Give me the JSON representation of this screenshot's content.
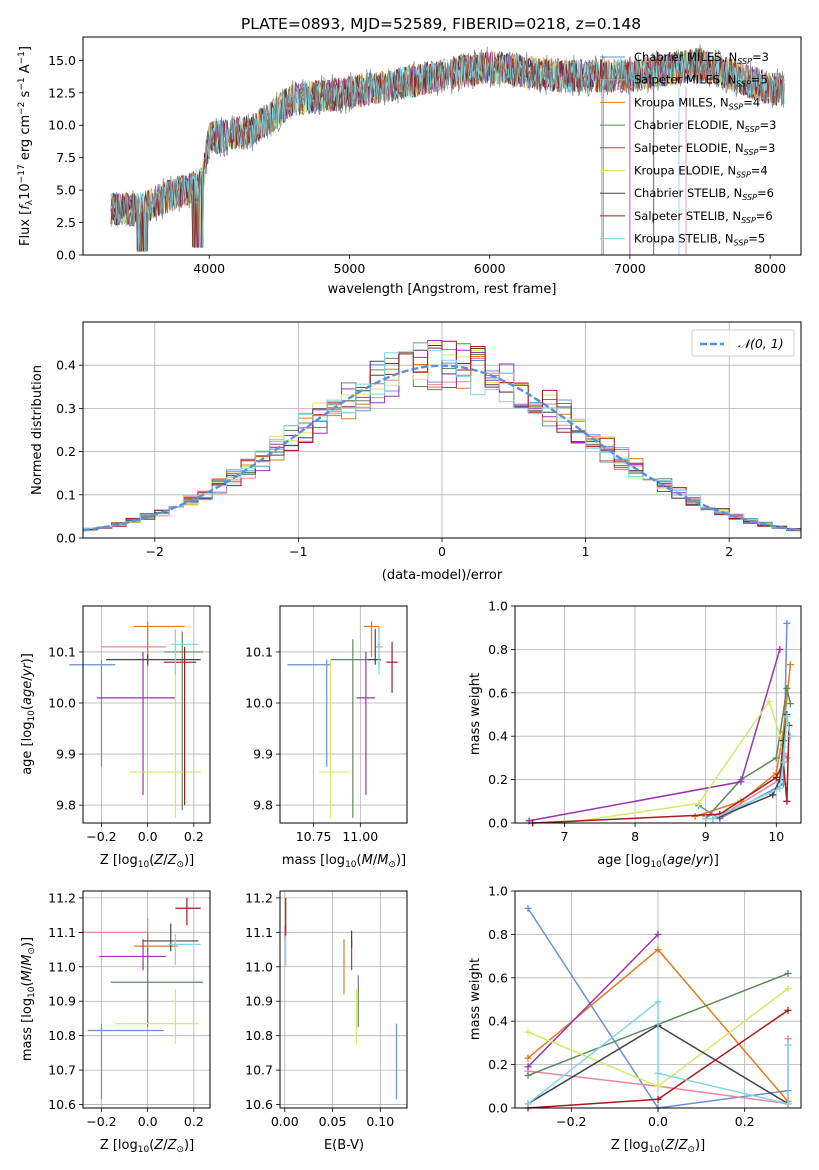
{
  "chart_data": [
    {
      "type": "line",
      "title": "PLATE=0893, MJD=52589, FIBERID=0218, z=0.148",
      "xlabel": "wavelength [Angstrom, rest frame]",
      "ylabel": "Flux [f_λ 10^{-17} erg cm^{-2} s^{-1} A^{-1}]",
      "ylabel_parts": {
        "a": "Flux [",
        "b": "f",
        "c": "λ",
        "d": "10",
        "e": "−17",
        "f": " erg cm",
        "g": "−2",
        "h": " s",
        "i": "−1",
        "j": " A",
        "k": "−1",
        "l": "]"
      },
      "xlim": [
        3100,
        8220
      ],
      "ylim": [
        0,
        16.8
      ],
      "xticks": [
        4000,
        5000,
        6000,
        7000,
        8000
      ],
      "xtick_labels": [
        "4000",
        "5000",
        "6000",
        "7000",
        "8000"
      ],
      "yticks": [
        0,
        2.5,
        5,
        7.5,
        10,
        12.5,
        15
      ],
      "ytick_labels": [
        "0.0",
        "2.5",
        "5.0",
        "7.5",
        "10.0",
        "12.5",
        "15.0"
      ],
      "data_range": [
        3300,
        8100
      ],
      "continuum": [
        {
          "x": 3300,
          "y": 3.5
        },
        {
          "x": 3500,
          "y": 3.5
        },
        {
          "x": 3700,
          "y": 4.5
        },
        {
          "x": 3950,
          "y": 5.5
        },
        {
          "x": 4000,
          "y": 9.0
        },
        {
          "x": 4300,
          "y": 9.5
        },
        {
          "x": 4600,
          "y": 12.0
        },
        {
          "x": 5000,
          "y": 12.5
        },
        {
          "x": 5500,
          "y": 13.5
        },
        {
          "x": 6000,
          "y": 14.5
        },
        {
          "x": 6500,
          "y": 13.8
        },
        {
          "x": 7000,
          "y": 13.8
        },
        {
          "x": 7500,
          "y": 14.7
        },
        {
          "x": 8000,
          "y": 12.8
        },
        {
          "x": 8100,
          "y": 12.8
        }
      ],
      "series": [
        {
          "name": "Chabrier MILES",
          "nssp": "3",
          "color": "#6a8fdc"
        },
        {
          "name": "Salpeter MILES",
          "nssp": "5",
          "color": "#e6889b"
        },
        {
          "name": "Kroupa MILES",
          "nssp": "4",
          "color": "#e07b1f"
        },
        {
          "name": "Chabrier ELODIE",
          "nssp": "3",
          "color": "#5e8a62"
        },
        {
          "name": "Salpeter ELODIE",
          "nssp": "3",
          "color": "#9b34b3"
        },
        {
          "name": "Kroupa ELODIE",
          "nssp": "4",
          "color": "#d7e86a"
        },
        {
          "name": "Chabrier STELIB",
          "nssp": "6",
          "color": "#444444"
        },
        {
          "name": "Salpeter STELIB",
          "nssp": "6",
          "color": "#a51c1c"
        },
        {
          "name": "Kroupa STELIB",
          "nssp": "5",
          "color": "#7fd7e3"
        }
      ],
      "data_color": "#808080",
      "legend": "top-right",
      "legend_ssp_label": "N_SSP="
    },
    {
      "type": "area",
      "xlabel": "(data-model)/error",
      "ylabel": "Normed distribution",
      "xlim": [
        -2.5,
        2.5
      ],
      "ylim": [
        0,
        0.5
      ],
      "xticks": [
        -2,
        -1,
        0,
        1,
        2
      ],
      "xtick_labels": [
        "−2",
        "−1",
        "0",
        "1",
        "2"
      ],
      "yticks": [
        0,
        0.1,
        0.2,
        0.3,
        0.4
      ],
      "ytick_labels": [
        "0.0",
        "0.1",
        "0.2",
        "0.3",
        "0.4"
      ],
      "bin_width": 0.1,
      "grid": true,
      "legend": "top-right",
      "gaussian": {
        "label": "𝒩(0, 1)",
        "mean": 0,
        "sigma": 1,
        "color": "#5b8fdc"
      },
      "series_colors": [
        "#6a8fdc",
        "#e6889b",
        "#e07b1f",
        "#5e8a62",
        "#9b34b3",
        "#d7e86a",
        "#444444",
        "#a51c1c",
        "#7fd7e3"
      ]
    },
    {
      "type": "scatter",
      "xlabel": "Z [log10(Z/Z⊙)]",
      "ylabel": "age  [log10(age/yr)]",
      "xlim": [
        -0.28,
        0.27
      ],
      "ylim": [
        9.765,
        10.19
      ],
      "xticks": [
        -0.2,
        0.0,
        0.2
      ],
      "xtick_labels": [
        "−0.2",
        "0.0",
        "0.2"
      ],
      "yticks": [
        9.8,
        9.9,
        10.0,
        10.1
      ],
      "ytick_labels": [
        "9.8",
        "9.9",
        "10.0",
        "10.1"
      ],
      "grid": true,
      "points": [
        {
          "x": -0.2,
          "xerr": [
            0.14,
            0.06
          ],
          "y": 10.075,
          "yerr": [
            0.2,
            0.01
          ],
          "color": "#6a8fdc"
        },
        {
          "x": 0.0,
          "xerr": [
            0.2,
            0.08
          ],
          "y": 10.11,
          "yerr": [
            0.04,
            0.04
          ],
          "color": "#e6889b"
        },
        {
          "x": 0.0,
          "xerr": [
            0.06,
            0.16
          ],
          "y": 10.15,
          "yerr": [
            0.06,
            0.01
          ],
          "color": "#e07b1f"
        },
        {
          "x": 0.15,
          "xerr": [
            0.08,
            0.09
          ],
          "y": 10.1,
          "yerr": [
            0.31,
            0.04
          ],
          "color": "#5e8a62"
        },
        {
          "x": -0.02,
          "xerr": [
            0.2,
            0.14
          ],
          "y": 10.01,
          "yerr": [
            0.19,
            0.09
          ],
          "color": "#9b34b3"
        },
        {
          "x": 0.12,
          "xerr": [
            0.2,
            0.11
          ],
          "y": 9.865,
          "yerr": [
            0.09,
            0.22
          ],
          "color": "#d7e86a"
        },
        {
          "x": 0.0,
          "xerr": [
            0.18,
            0.23
          ],
          "y": 10.085,
          "yerr": [
            0.01,
            0.01
          ],
          "color": "#444444"
        },
        {
          "x": 0.16,
          "xerr": [
            0.09,
            0.05
          ],
          "y": 10.08,
          "yerr": [
            0.28,
            0.03
          ],
          "color": "#a51c1c"
        },
        {
          "x": 0.12,
          "xerr": [
            0.02,
            0.1
          ],
          "y": 10.115,
          "yerr": [
            0.06,
            0.03
          ],
          "color": "#7fd7e3"
        }
      ]
    },
    {
      "type": "scatter",
      "xlabel": "mass [log10(M/M⊙)]",
      "xlim": [
        10.57,
        11.25
      ],
      "ylim": [
        9.765,
        10.19
      ],
      "xticks": [
        10.75,
        11.0
      ],
      "xtick_labels": [
        "10.75",
        "11.00"
      ],
      "yticks": [
        9.8,
        9.9,
        10.0,
        10.1
      ],
      "ytick_labels": [
        "9.8",
        "9.9",
        "10.0",
        "10.1"
      ],
      "grid": true,
      "points": [
        {
          "x": 10.82,
          "xerr": [
            0.21,
            0.02
          ],
          "y": 10.075,
          "yerr": [
            0.2,
            0.01
          ],
          "color": "#6a8fdc"
        },
        {
          "x": 11.1,
          "xerr": [
            0.02,
            0.02
          ],
          "y": 10.11,
          "yerr": [
            0.04,
            0.04
          ],
          "color": "#e6889b"
        },
        {
          "x": 11.06,
          "xerr": [
            0.04,
            0.04
          ],
          "y": 10.15,
          "yerr": [
            0.06,
            0.01
          ],
          "color": "#e07b1f"
        },
        {
          "x": 10.96,
          "xerr": [
            0.12,
            0.1
          ],
          "y": 10.085,
          "yerr": [
            0.31,
            0.04
          ],
          "color": "#5e8a62"
        },
        {
          "x": 11.03,
          "xerr": [
            0.05,
            0.05
          ],
          "y": 10.01,
          "yerr": [
            0.19,
            0.09
          ],
          "color": "#9b34b3"
        },
        {
          "x": 10.84,
          "xerr": [
            0.06,
            0.1
          ],
          "y": 9.865,
          "yerr": [
            0.09,
            0.22
          ],
          "color": "#d7e86a"
        },
        {
          "x": 11.08,
          "xerr": [
            0.04,
            0.03
          ],
          "y": 10.085,
          "yerr": [
            0.01,
            0.06
          ],
          "color": "#444444"
        },
        {
          "x": 11.17,
          "xerr": [
            0.03,
            0.03
          ],
          "y": 10.08,
          "yerr": [
            0.06,
            0.04
          ],
          "color": "#a51c1c"
        },
        {
          "x": 11.1,
          "xerr": [
            0.01,
            0.01
          ],
          "y": 10.115,
          "yerr": [
            0.06,
            0.03
          ],
          "color": "#7fd7e3"
        }
      ]
    },
    {
      "type": "line",
      "xlabel": "age  [log10(age/yr)]",
      "ylabel": "mass weight",
      "xlim": [
        6.3,
        10.35
      ],
      "ylim": [
        0,
        1.0
      ],
      "xticks": [
        7,
        8,
        9,
        10
      ],
      "xtick_labels": [
        "7",
        "8",
        "9",
        "10"
      ],
      "yticks": [
        0,
        0.2,
        0.4,
        0.6,
        0.8,
        1.0
      ],
      "ytick_labels": [
        "0.0",
        "0.2",
        "0.4",
        "0.6",
        "0.8",
        "1.0"
      ],
      "grid": true,
      "series": [
        {
          "color": "#6a8fdc",
          "x": [
            8.9,
            9.2,
            10.1,
            10.15
          ],
          "y": [
            0.08,
            0.02,
            0.18,
            0.92
          ]
        },
        {
          "color": "#e6889b",
          "x": [
            9.0,
            9.3,
            10.05,
            10.1,
            10.15
          ],
          "y": [
            0.03,
            0.05,
            0.2,
            0.32,
            0.3
          ]
        },
        {
          "color": "#e07b1f",
          "x": [
            8.85,
            9.5,
            10.0,
            10.1,
            10.2
          ],
          "y": [
            0.03,
            0.1,
            0.23,
            0.42,
            0.73
          ]
        },
        {
          "color": "#5e8a62",
          "x": [
            9.0,
            9.5,
            10.0,
            10.15,
            10.2
          ],
          "y": [
            0.02,
            0.2,
            0.3,
            0.62,
            0.55
          ]
        },
        {
          "color": "#9b34b3",
          "x": [
            6.5,
            9.5,
            10.05
          ],
          "y": [
            0.01,
            0.19,
            0.8
          ]
        },
        {
          "color": "#d7e86a",
          "x": [
            7.0,
            8.9,
            9.9,
            10.1
          ],
          "y": [
            0.0,
            0.09,
            0.56,
            0.35
          ]
        },
        {
          "color": "#444444",
          "x": [
            9.1,
            9.2,
            9.95,
            10.05,
            10.1,
            10.15
          ],
          "y": [
            0.02,
            0.03,
            0.13,
            0.2,
            0.38,
            0.5
          ]
        },
        {
          "color": "#a51c1c",
          "x": [
            6.55,
            9.2,
            10.0,
            10.1,
            10.15,
            10.18
          ],
          "y": [
            0.0,
            0.04,
            0.21,
            0.28,
            0.1,
            0.45
          ]
        },
        {
          "color": "#7fd7e3",
          "x": [
            9.0,
            9.1,
            10.05,
            10.1,
            10.15,
            10.2
          ],
          "y": [
            0.02,
            0.02,
            0.16,
            0.28,
            0.49,
            0.4
          ]
        }
      ]
    },
    {
      "type": "scatter",
      "xlabel": "Z [log10(Z/Z⊙)]",
      "ylabel": "mass [log10(M/M⊙)]",
      "xlim": [
        -0.28,
        0.27
      ],
      "ylim": [
        10.59,
        11.22
      ],
      "xticks": [
        -0.2,
        0.0,
        0.2
      ],
      "xtick_labels": [
        "−0.2",
        "0.0",
        "0.2"
      ],
      "yticks": [
        10.6,
        10.7,
        10.8,
        10.9,
        11.0,
        11.1,
        11.2
      ],
      "ytick_labels": [
        "10.6",
        "10.7",
        "10.8",
        "10.9",
        "11.0",
        "11.1",
        "11.2"
      ],
      "grid": true,
      "points": [
        {
          "x": -0.2,
          "xerr": [
            0.06,
            0.27
          ],
          "y": 10.815,
          "yerr": [
            0.2,
            0.02
          ],
          "color": "#6a8fdc"
        },
        {
          "x": 0.0,
          "xerr": [
            0.3,
            0.0
          ],
          "y": 11.1,
          "yerr": [
            0.12,
            0.04
          ],
          "color": "#e6889b"
        },
        {
          "x": 0.0,
          "xerr": [
            0.06,
            0.13
          ],
          "y": 11.06,
          "yerr": [
            0.04,
            0.04
          ],
          "color": "#e07b1f"
        },
        {
          "x": 0.0,
          "xerr": [
            0.16,
            0.24
          ],
          "y": 10.955,
          "yerr": [
            0.13,
            0.1
          ],
          "color": "#5e8a62"
        },
        {
          "x": -0.02,
          "xerr": [
            0.19,
            0.1
          ],
          "y": 11.03,
          "yerr": [
            0.04,
            0.05
          ],
          "color": "#9b34b3"
        },
        {
          "x": 0.12,
          "xerr": [
            0.26,
            0.1
          ],
          "y": 10.835,
          "yerr": [
            0.06,
            0.1
          ],
          "color": "#d7e86a"
        },
        {
          "x": 0.1,
          "xerr": [
            0.12,
            0.12
          ],
          "y": 11.075,
          "yerr": [
            0.03,
            0.05
          ],
          "color": "#444444"
        },
        {
          "x": 0.17,
          "xerr": [
            0.05,
            0.06
          ],
          "y": 11.17,
          "yerr": [
            0.05,
            0.03
          ],
          "color": "#a51c1c"
        },
        {
          "x": 0.12,
          "xerr": [
            0.03,
            0.11
          ],
          "y": 11.065,
          "yerr": [
            0.06,
            0.03
          ],
          "color": "#7fd7e3"
        }
      ]
    },
    {
      "type": "scatter",
      "xlabel": "E(B-V)",
      "xlim": [
        -0.005,
        0.128
      ],
      "ylim": [
        10.59,
        11.22
      ],
      "xticks": [
        0.0,
        0.05,
        0.1
      ],
      "xtick_labels": [
        "0.00",
        "0.05",
        "0.10"
      ],
      "yticks": [
        10.6,
        10.7,
        10.8,
        10.9,
        11.0,
        11.1,
        11.2
      ],
      "ytick_labels": [
        "10.6",
        "10.7",
        "10.8",
        "10.9",
        "11.0",
        "11.1",
        "11.2"
      ],
      "grid": true,
      "points": [
        {
          "x": 0.117,
          "y": 10.815,
          "yerr": [
            0.2,
            0.02
          ],
          "color": "#6a8fdc"
        },
        {
          "x": 0.0,
          "y": 11.1,
          "yerr": [
            0.02,
            0.02
          ],
          "color": "#e6889b"
        },
        {
          "x": 0.062,
          "y": 11.0,
          "yerr": [
            0.08,
            0.08
          ],
          "color": "#e07b1f"
        },
        {
          "x": 0.077,
          "y": 10.905,
          "yerr": [
            0.08,
            0.07
          ],
          "color": "#5e8a62"
        },
        {
          "x": 0.07,
          "y": 11.03,
          "yerr": [
            0.04,
            0.05
          ],
          "color": "#9b34b3"
        },
        {
          "x": 0.075,
          "y": 10.835,
          "yerr": [
            0.06,
            0.1
          ],
          "color": "#d7e86a"
        },
        {
          "x": 0.07,
          "y": 11.075,
          "yerr": [
            0.02,
            0.03
          ],
          "color": "#444444"
        },
        {
          "x": 0.001,
          "y": 11.14,
          "yerr": [
            0.05,
            0.06
          ],
          "color": "#a51c1c"
        },
        {
          "x": 0.001,
          "y": 11.05,
          "yerr": [
            0.05,
            0.04
          ],
          "color": "#7fd7e3"
        }
      ]
    },
    {
      "type": "line",
      "xlabel": "Z [log10(Z/Z⊙)]",
      "ylabel": "mass weight",
      "xlim": [
        -0.33,
        0.33
      ],
      "ylim": [
        0,
        1.0
      ],
      "xticks": [
        -0.2,
        0.0,
        0.2
      ],
      "xtick_labels": [
        "−0.2",
        "0.0",
        "0.2"
      ],
      "yticks": [
        0,
        0.2,
        0.4,
        0.6,
        0.8,
        1.0
      ],
      "ytick_labels": [
        "0.0",
        "0.2",
        "0.4",
        "0.6",
        "0.8",
        "1.0"
      ],
      "grid": true,
      "series": [
        {
          "color": "#6a8fdc",
          "x": [
            -0.3,
            0.0,
            0.3
          ],
          "y": [
            0.92,
            0.0,
            0.08
          ]
        },
        {
          "color": "#e6889b",
          "x": [
            -0.3,
            0.0,
            0.3,
            0.3
          ],
          "y": [
            0.17,
            0.1,
            0.02,
            0.32
          ]
        },
        {
          "color": "#e07b1f",
          "x": [
            -0.3,
            0.0,
            0.3
          ],
          "y": [
            0.23,
            0.73,
            0.03
          ]
        },
        {
          "color": "#5e8a62",
          "x": [
            -0.3,
            0.3
          ],
          "y": [
            0.15,
            0.62
          ]
        },
        {
          "color": "#9b34b3",
          "x": [
            -0.3,
            0.0
          ],
          "y": [
            0.19,
            0.8
          ]
        },
        {
          "color": "#d7e86a",
          "x": [
            -0.3,
            0.0,
            0.3
          ],
          "y": [
            0.35,
            0.1,
            0.55
          ]
        },
        {
          "color": "#444444",
          "x": [
            -0.3,
            0.0,
            0.3
          ],
          "y": [
            0.02,
            0.38,
            0.02
          ]
        },
        {
          "color": "#a51c1c",
          "x": [
            -0.3,
            0.0,
            0.3
          ],
          "y": [
            0.0,
            0.04,
            0.45
          ]
        },
        {
          "color": "#7fd7e3",
          "x": [
            -0.3,
            0.0,
            0.0,
            0.3,
            0.3
          ],
          "y": [
            0.02,
            0.49,
            0.16,
            0.02,
            0.29
          ]
        }
      ]
    }
  ]
}
